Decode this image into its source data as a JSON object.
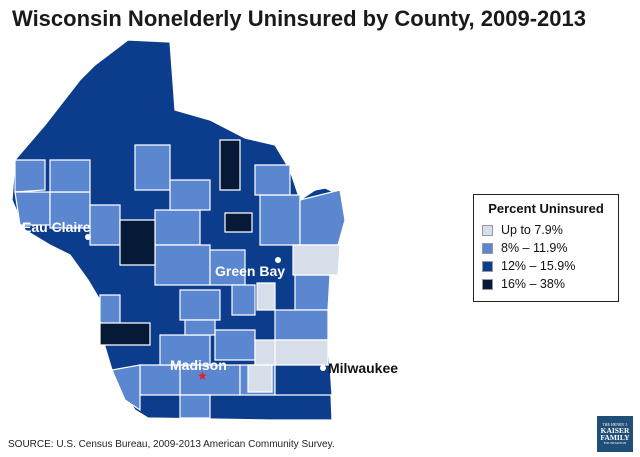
{
  "title": "Wisconsin Nonelderly Uninsured by County, 2009-2013",
  "legend": {
    "title": "Percent Uninsured",
    "items": [
      {
        "label": "Up to 7.9%",
        "color": "#d6dee9"
      },
      {
        "label": "8% – 11.9%",
        "color": "#5b86d0"
      },
      {
        "label": "12% – 15.9%",
        "color": "#0c3c8c"
      },
      {
        "label": "16% – 38%",
        "color": "#061a38"
      }
    ]
  },
  "cities": [
    {
      "name": "Eau Claire"
    },
    {
      "name": "Green Bay"
    },
    {
      "name": "Madison",
      "marker": "star"
    },
    {
      "name": "Milwaukee"
    }
  ],
  "source": "SOURCE: U.S. Census Bureau, 2009-2013 American Community Survey.",
  "logo": {
    "line1": "THE HENRY J.",
    "line2": "KAISER",
    "line3": "FAMILY",
    "line4": "FOUNDATION"
  },
  "colors": {
    "star": "#e0202a",
    "city_dot": "#ffffff",
    "border": "#ffffff"
  }
}
